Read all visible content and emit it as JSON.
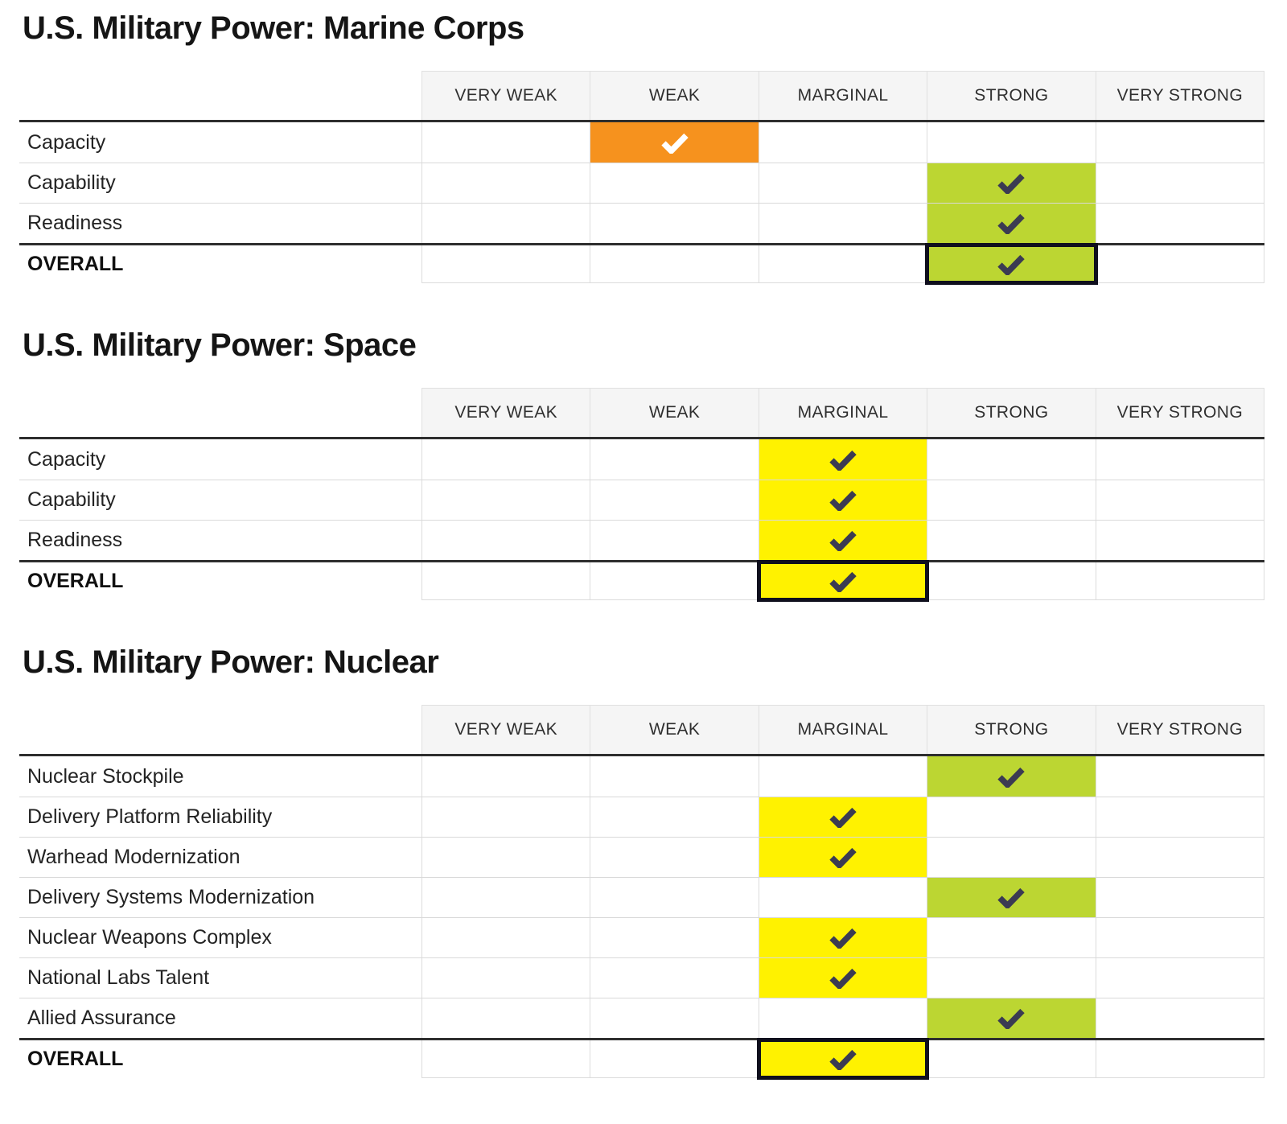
{
  "page": {
    "background": "#FFFFFF"
  },
  "rating_fill": {
    "WEAK": "#F6921E",
    "MARGINAL": "#FFF200",
    "STRONG": "#BCD632"
  },
  "check_color_on": {
    "WEAK": "#FFFFFF",
    "MARGINAL": "#3B3B52",
    "STRONG": "#3B3B52"
  },
  "overall_border_color": "#0F0F1D",
  "chart_data": [
    {
      "type": "table",
      "title": "U.S. Military Power: Marine Corps",
      "columns": [
        "VERY WEAK",
        "WEAK",
        "MARGINAL",
        "STRONG",
        "VERY STRONG"
      ],
      "rows": [
        {
          "label": "Capacity",
          "rating": "WEAK",
          "is_overall": false
        },
        {
          "label": "Capability",
          "rating": "STRONG",
          "is_overall": false
        },
        {
          "label": "Readiness",
          "rating": "STRONG",
          "is_overall": false
        },
        {
          "label": "OVERALL",
          "rating": "STRONG",
          "is_overall": true
        }
      ]
    },
    {
      "type": "table",
      "title": "U.S. Military Power: Space",
      "columns": [
        "VERY WEAK",
        "WEAK",
        "MARGINAL",
        "STRONG",
        "VERY STRONG"
      ],
      "rows": [
        {
          "label": "Capacity",
          "rating": "MARGINAL",
          "is_overall": false
        },
        {
          "label": "Capability",
          "rating": "MARGINAL",
          "is_overall": false
        },
        {
          "label": "Readiness",
          "rating": "MARGINAL",
          "is_overall": false
        },
        {
          "label": "OVERALL",
          "rating": "MARGINAL",
          "is_overall": true
        }
      ]
    },
    {
      "type": "table",
      "title": "U.S. Military Power: Nuclear",
      "columns": [
        "VERY WEAK",
        "WEAK",
        "MARGINAL",
        "STRONG",
        "VERY STRONG"
      ],
      "rows": [
        {
          "label": "Nuclear Stockpile",
          "rating": "STRONG",
          "is_overall": false
        },
        {
          "label": "Delivery Platform Reliability",
          "rating": "MARGINAL",
          "is_overall": false
        },
        {
          "label": "Warhead Modernization",
          "rating": "MARGINAL",
          "is_overall": false
        },
        {
          "label": "Delivery Systems Modernization",
          "rating": "STRONG",
          "is_overall": false
        },
        {
          "label": "Nuclear Weapons Complex",
          "rating": "MARGINAL",
          "is_overall": false
        },
        {
          "label": "National Labs Talent",
          "rating": "MARGINAL",
          "is_overall": false
        },
        {
          "label": "Allied Assurance",
          "rating": "STRONG",
          "is_overall": false
        },
        {
          "label": "OVERALL",
          "rating": "MARGINAL",
          "is_overall": true
        }
      ]
    }
  ]
}
